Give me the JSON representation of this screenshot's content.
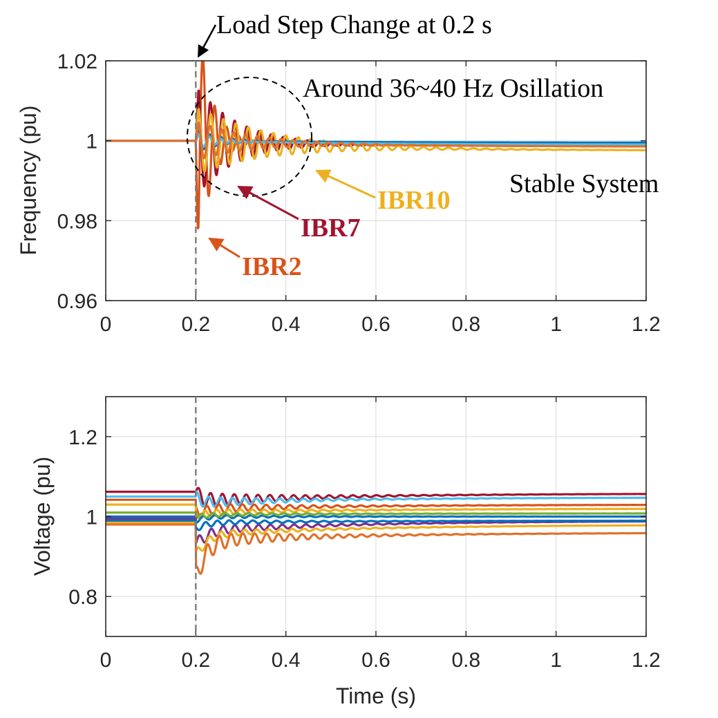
{
  "chart_data": [
    {
      "type": "line",
      "ylabel": "Frequency (pu)",
      "xlabel": "",
      "xlim": [
        0,
        1.2
      ],
      "ylim": [
        0.96,
        1.02
      ],
      "xticks": [
        0,
        0.2,
        0.4,
        0.6,
        0.8,
        1,
        1.2
      ],
      "xtick_labels": [
        "0",
        "0.2",
        "0.4",
        "0.6",
        "0.8",
        "1",
        "1.2"
      ],
      "yticks": [
        0.96,
        0.98,
        1,
        1.02
      ],
      "ytick_labels": [
        "0.96",
        "0.98",
        "1",
        "1.02"
      ],
      "grid": true,
      "event_line_x": 0.2,
      "event_label": "Load Step Change at 0.2 s",
      "oscillation_label": "Around 36~40 Hz Osillation",
      "status_label": "Stable System",
      "series": [
        {
          "name": "IBR2",
          "color": "#D95319",
          "f_hz": 38,
          "amp": -0.036,
          "tau": 0.03,
          "end": 0.999
        },
        {
          "name": "IBR7",
          "color": "#A2142F",
          "f_hz": 37,
          "amp": 0.014,
          "tau": 0.09,
          "end": 0.9985
        },
        {
          "name": "IBR10",
          "color": "#EDB120",
          "f_hz": 36,
          "amp": 0.0085,
          "tau": 0.16,
          "end": 0.9975
        },
        {
          "name": "",
          "color": "#0072BD",
          "f_hz": 39,
          "amp": 0.003,
          "tau": 0.05,
          "end": 0.9995
        },
        {
          "name": "",
          "color": "#4DBEEE",
          "f_hz": 40,
          "amp": 0.002,
          "tau": 0.05,
          "end": 0.999
        },
        {
          "name": "",
          "color": "#E0702A",
          "f_hz": 38,
          "amp": 0.005,
          "tau": 0.12,
          "end": 0.9985
        }
      ]
    },
    {
      "type": "line",
      "ylabel": "Voltage (pu)",
      "xlabel": "Time (s)",
      "xlim": [
        0,
        1.2
      ],
      "ylim": [
        0.7,
        1.3
      ],
      "xticks": [
        0,
        0.2,
        0.4,
        0.6,
        0.8,
        1,
        1.2
      ],
      "xtick_labels": [
        "0",
        "0.2",
        "0.4",
        "0.6",
        "0.8",
        "1",
        "1.2"
      ],
      "yticks": [
        0.8,
        1,
        1.2
      ],
      "ytick_labels": [
        "0.8",
        "1",
        "1.2"
      ],
      "grid": true,
      "event_line_x": 0.2,
      "series": [
        {
          "color": "#A2142F",
          "v0": 1.062,
          "dip": 0.0,
          "amp": 0.02,
          "mid": 1.04,
          "end": 1.058
        },
        {
          "color": "#4DBEEE",
          "v0": 1.05,
          "dip": 0.0,
          "amp": 0.015,
          "mid": 1.035,
          "end": 1.048
        },
        {
          "color": "#D95319",
          "v0": 1.042,
          "dip": -0.03,
          "amp": 0.015,
          "mid": 1.02,
          "end": 1.03
        },
        {
          "color": "#EDB120",
          "v0": 1.03,
          "dip": -0.02,
          "amp": 0.01,
          "mid": 1.01,
          "end": 1.02
        },
        {
          "color": "#0072BD",
          "v0": 1.0,
          "dip": -0.01,
          "amp": 0.006,
          "mid": 1.0,
          "end": 1.0
        },
        {
          "color": "#77AC30",
          "v0": 1.01,
          "dip": -0.01,
          "amp": 0.006,
          "mid": 1.005,
          "end": 1.008
        },
        {
          "color": "#7E2F8E",
          "v0": 0.995,
          "dip": -0.06,
          "amp": 0.015,
          "mid": 0.965,
          "end": 0.99
        },
        {
          "color": "#EDB120",
          "v0": 0.985,
          "dip": -0.08,
          "amp": 0.012,
          "mid": 0.955,
          "end": 0.98
        },
        {
          "color": "#E0702A",
          "v0": 0.98,
          "dip": -0.13,
          "amp": 0.025,
          "mid": 0.94,
          "end": 0.96
        },
        {
          "color": "#0072BD",
          "v0": 0.99,
          "dip": -0.02,
          "amp": 0.008,
          "mid": 0.985,
          "end": 0.99
        }
      ]
    }
  ],
  "annotations": {
    "ibr2": "IBR2",
    "ibr7": "IBR7",
    "ibr10": "IBR10"
  }
}
